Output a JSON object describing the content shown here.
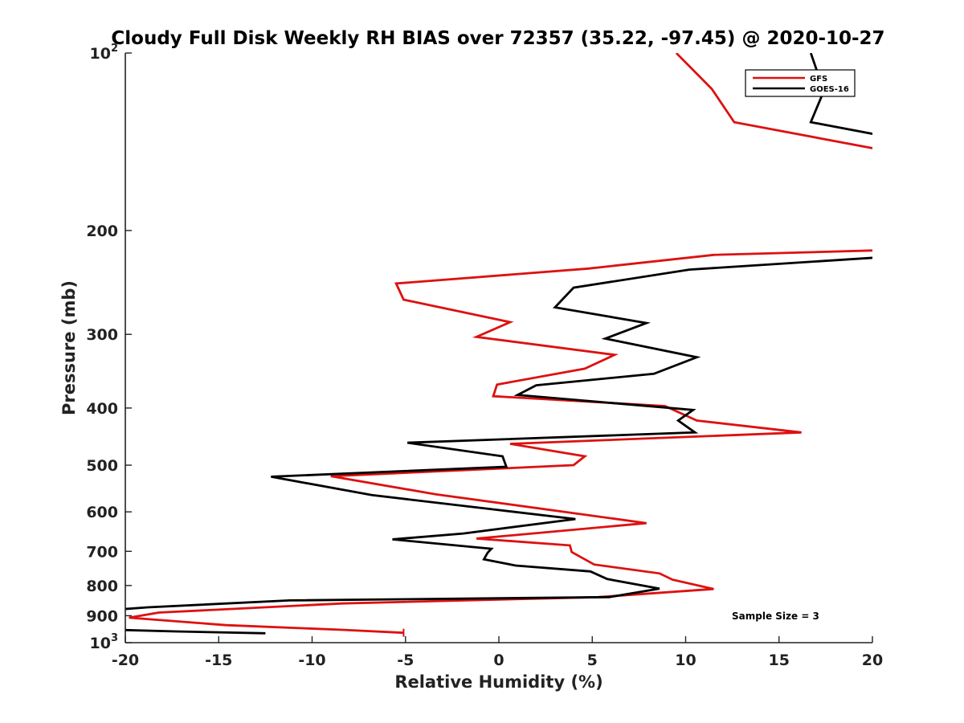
{
  "chart_data": {
    "type": "line",
    "title": "Cloudy Full Disk Weekly RH BIAS over 72357 (35.22, -97.45) @ 2020-10-27",
    "xlabel": "Relative Humidity (%)",
    "ylabel": "Pressure (mb)",
    "xlim": [
      -20,
      20
    ],
    "ylim": [
      100,
      1000
    ],
    "yscale": "log",
    "y_reversed": true,
    "xticks": [
      -20,
      -15,
      -10,
      -5,
      0,
      5,
      10,
      15,
      20
    ],
    "xtick_labels": [
      "-20",
      "-15",
      "-10",
      "-5",
      "0",
      "5",
      "10",
      "15",
      "20"
    ],
    "yticks": [
      {
        "value": 100,
        "base": "10",
        "exp": "2"
      },
      {
        "value": 200,
        "label": "200"
      },
      {
        "value": 300,
        "label": "300"
      },
      {
        "value": 400,
        "label": "400"
      },
      {
        "value": 500,
        "label": "500"
      },
      {
        "value": 600,
        "label": "600"
      },
      {
        "value": 700,
        "label": "700"
      },
      {
        "value": 800,
        "label": "800"
      },
      {
        "value": 900,
        "label": "900"
      },
      {
        "value": 1000,
        "base": "10",
        "exp": "3"
      }
    ],
    "legend_position": "top-right",
    "annotation": "Sample Size = 3",
    "grid": false,
    "series": [
      {
        "name": "GFS",
        "color": "#dd1111",
        "points": [
          [
            9.5,
            100
          ],
          [
            11.4,
            115
          ],
          [
            12.6,
            131
          ],
          [
            20.5,
            146
          ],
          [
            null,
            null
          ],
          [
            20.5,
            216
          ],
          [
            11.5,
            220
          ],
          [
            4.8,
            232
          ],
          [
            -5.5,
            246
          ],
          [
            -5.1,
            262
          ],
          [
            0.6,
            286
          ],
          [
            -1.2,
            303
          ],
          [
            6.2,
            325
          ],
          [
            4.6,
            343
          ],
          [
            -0.1,
            365
          ],
          [
            -0.3,
            382
          ],
          [
            8.9,
            397
          ],
          [
            10.6,
            420
          ],
          [
            16.2,
            440
          ],
          [
            0.6,
            460
          ],
          [
            4.6,
            483
          ],
          [
            4.0,
            500
          ],
          [
            -9.0,
            522
          ],
          [
            -3.4,
            560
          ],
          [
            7.9,
            627
          ],
          [
            -1.2,
            666
          ],
          [
            3.8,
            684
          ],
          [
            3.9,
            702
          ],
          [
            5.1,
            737
          ],
          [
            8.6,
            763
          ],
          [
            9.3,
            782
          ],
          [
            11.5,
            811
          ],
          [
            5.3,
            837
          ],
          [
            -8.4,
            858
          ],
          [
            -18.2,
            889
          ],
          [
            -19.8,
            907
          ],
          [
            -14.6,
            934
          ],
          [
            -8.4,
            951
          ],
          [
            -5.1,
            962
          ]
        ]
      },
      {
        "name": "GOES-16",
        "color": "#000000",
        "points": [
          [
            16.7,
            100
          ],
          [
            17.4,
            116
          ],
          [
            16.7,
            131
          ],
          [
            20.5,
            138
          ],
          [
            null,
            null
          ],
          [
            20.5,
            222
          ],
          [
            10.2,
            233
          ],
          [
            4.0,
            250
          ],
          [
            3.0,
            270
          ],
          [
            7.9,
            287
          ],
          [
            5.7,
            305
          ],
          [
            10.6,
            328
          ],
          [
            8.3,
            350
          ],
          [
            2.0,
            366
          ],
          [
            1.0,
            380
          ],
          [
            10.4,
            403
          ],
          [
            9.6,
            420
          ],
          [
            10.5,
            440
          ],
          [
            -4.9,
            458
          ],
          [
            0.2,
            483
          ],
          [
            0.4,
            503
          ],
          [
            -12.2,
            523
          ],
          [
            -6.8,
            562
          ],
          [
            4.1,
            617
          ],
          [
            -1.9,
            653
          ],
          [
            -5.7,
            668
          ],
          [
            -0.4,
            693
          ],
          [
            -0.6,
            704
          ],
          [
            -0.8,
            722
          ],
          [
            0.9,
            740
          ],
          [
            4.9,
            757
          ],
          [
            5.8,
            780
          ],
          [
            8.6,
            810
          ],
          [
            5.9,
            837
          ],
          [
            -11.2,
            848
          ],
          [
            -18.8,
            871
          ],
          [
            -20.5,
            879
          ],
          [
            null,
            null
          ],
          [
            -20.5,
            951
          ],
          [
            -17.3,
            957
          ],
          [
            -12.5,
            964
          ]
        ]
      }
    ]
  }
}
